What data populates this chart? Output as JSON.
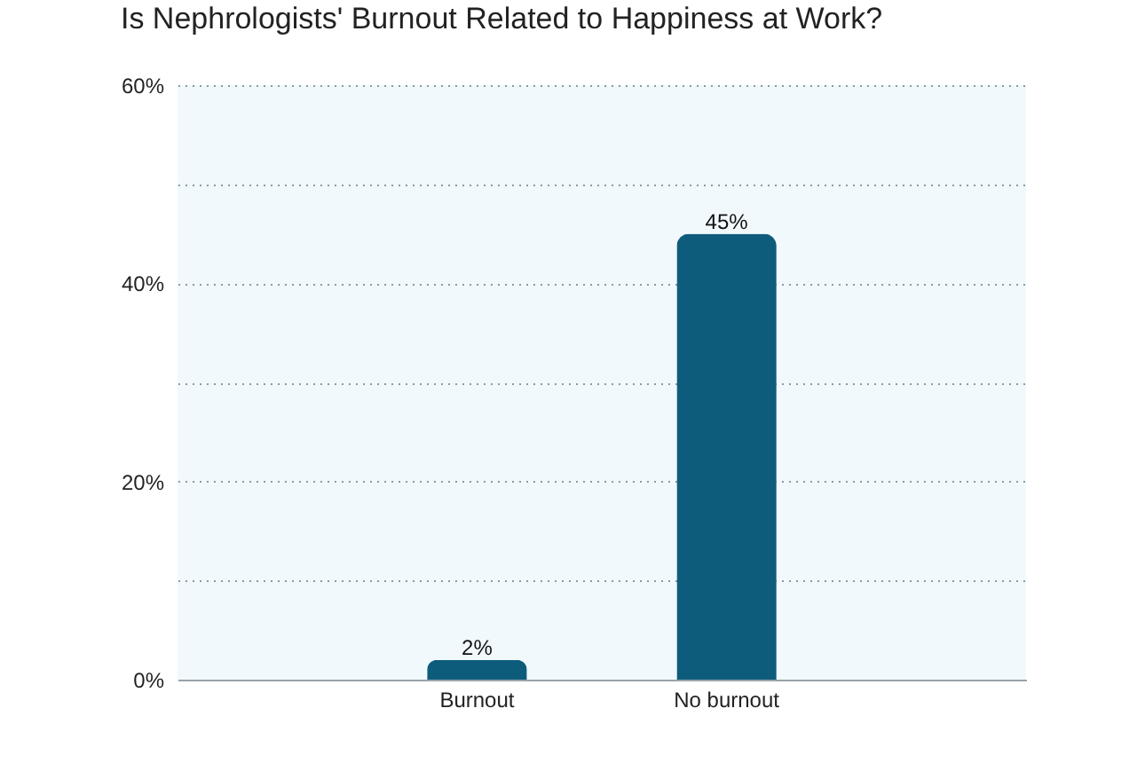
{
  "chart_data": {
    "type": "bar",
    "title": "Is Nephrologists' Burnout Related to Happiness at Work?",
    "categories": [
      "Burnout",
      "No burnout"
    ],
    "values": [
      2,
      45
    ],
    "value_labels": [
      "2%",
      "45%"
    ],
    "color": "#0e5c7c",
    "ylim": [
      0,
      60
    ],
    "yticks": [
      {
        "value": 0,
        "label": "0%"
      },
      {
        "value": 10,
        "label": null
      },
      {
        "value": 20,
        "label": "20%"
      },
      {
        "value": 30,
        "label": null
      },
      {
        "value": 40,
        "label": "40%"
      },
      {
        "value": 50,
        "label": null
      },
      {
        "value": 60,
        "label": "60%"
      }
    ],
    "grid": "y"
  }
}
